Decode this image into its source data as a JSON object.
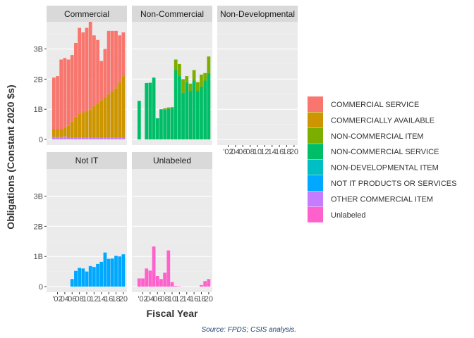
{
  "chart_data": {
    "type": "bar",
    "stacked": true,
    "ylabel": "Obligations (Constant 2020 $s)",
    "xlabel": "Fiscal Year",
    "caption": "Source: FPDS; CSIS analysis.",
    "ylim": [
      0,
      3.9
    ],
    "y_ticks": [
      {
        "value": 0,
        "label": "0"
      },
      {
        "value": 1,
        "label": "1B"
      },
      {
        "value": 2,
        "label": "2B"
      },
      {
        "value": 3,
        "label": "3B"
      }
    ],
    "x_range": [
      2000,
      2020
    ],
    "x_ticks": [
      {
        "value": 2002,
        "label": "'02"
      },
      {
        "value": 2004,
        "label": "04"
      },
      {
        "value": 2006,
        "label": "06"
      },
      {
        "value": 2008,
        "label": "08"
      },
      {
        "value": 2010,
        "label": "10"
      },
      {
        "value": 2012,
        "label": "12"
      },
      {
        "value": 2014,
        "label": "14"
      },
      {
        "value": 2016,
        "label": "16"
      },
      {
        "value": 2018,
        "label": "18"
      },
      {
        "value": 2020,
        "label": "20"
      }
    ],
    "legend_position": "right",
    "legend": [
      {
        "name": "COMMERCIAL SERVICE",
        "color": "#F8766D"
      },
      {
        "name": "COMMERCIALLY AVAILABLE",
        "color": "#CD9600"
      },
      {
        "name": "NON-COMMERCIAL ITEM",
        "color": "#7CAE00"
      },
      {
        "name": "NON-COMMERCIAL SERVICE",
        "color": "#00BE67"
      },
      {
        "name": "NON-DEVELOPMENTAL ITEM",
        "color": "#00BFC4"
      },
      {
        "name": "NOT IT PRODUCTS OR SERVICES",
        "color": "#00A9FF"
      },
      {
        "name": "OTHER COMMERCIAL ITEM",
        "color": "#C77CFF"
      },
      {
        "name": "Unlabeled",
        "color": "#FF61CC"
      }
    ],
    "years": [
      2001,
      2002,
      2003,
      2004,
      2005,
      2006,
      2007,
      2008,
      2009,
      2010,
      2011,
      2012,
      2013,
      2014,
      2015,
      2016,
      2017,
      2018,
      2019,
      2020
    ],
    "panels": [
      {
        "title": "Commercial",
        "series": [
          {
            "name": "OTHER COMMERCIAL ITEM",
            "values": [
              0.08,
              0.08,
              0.08,
              0.1,
              0.05,
              0.05,
              0.05,
              0.05,
              0.05,
              0.05,
              0.05,
              0.05,
              0.05,
              0.05,
              0.05,
              0.05,
              0.05,
              0.05,
              0.05,
              0.05
            ]
          },
          {
            "name": "COMMERCIALLY AVAILABLE",
            "values": [
              0.27,
              0.27,
              0.27,
              0.3,
              0.4,
              0.55,
              0.7,
              0.8,
              0.85,
              0.9,
              0.95,
              1.05,
              1.15,
              1.25,
              1.35,
              1.45,
              1.55,
              1.65,
              1.85,
              2.05
            ]
          },
          {
            "name": "COMMERCIAL SERVICE",
            "values": [
              1.7,
              1.75,
              2.3,
              2.3,
              2.2,
              2.2,
              2.45,
              2.85,
              2.65,
              2.75,
              2.9,
              2.35,
              2.1,
              1.3,
              1.6,
              2.1,
              2.0,
              1.9,
              1.55,
              1.45
            ]
          }
        ]
      },
      {
        "title": "Non-Commercial",
        "series": [
          {
            "name": "NON-COMMERCIAL SERVICE",
            "values": [
              1.28,
              0,
              1.87,
              1.88,
              2.05,
              0.7,
              1.0,
              0.98,
              1.02,
              1.04,
              2.3,
              2.1,
              1.55,
              1.9,
              1.6,
              1.95,
              1.6,
              1.75,
              1.95,
              2.2
            ]
          },
          {
            "name": "NON-COMMERCIAL ITEM",
            "values": [
              0,
              0,
              0,
              0,
              0,
              0,
              0,
              0.05,
              0.04,
              0.03,
              0.35,
              0.4,
              0.45,
              0.2,
              0.25,
              0.35,
              0.3,
              0.4,
              0.25,
              0.55
            ]
          }
        ]
      },
      {
        "title": "Non-Developmental",
        "series": []
      },
      {
        "title": "Not IT",
        "series": [
          {
            "name": "NOT IT PRODUCTS OR SERVICES",
            "values": [
              0,
              0,
              0,
              0,
              0,
              0.25,
              0.52,
              0.62,
              0.6,
              0.5,
              0.68,
              0.65,
              0.75,
              0.82,
              1.13,
              0.92,
              0.93,
              1.02,
              1.0,
              1.07
            ]
          }
        ]
      },
      {
        "title": "Unlabeled",
        "series": [
          {
            "name": "Unlabeled",
            "values": [
              0.27,
              0.27,
              0.6,
              0.53,
              1.33,
              0.35,
              0.25,
              0.46,
              1.2,
              0.15,
              0.02,
              0.01,
              0,
              0,
              0,
              0,
              0,
              0.05,
              0.18,
              0.25
            ]
          }
        ]
      }
    ]
  }
}
